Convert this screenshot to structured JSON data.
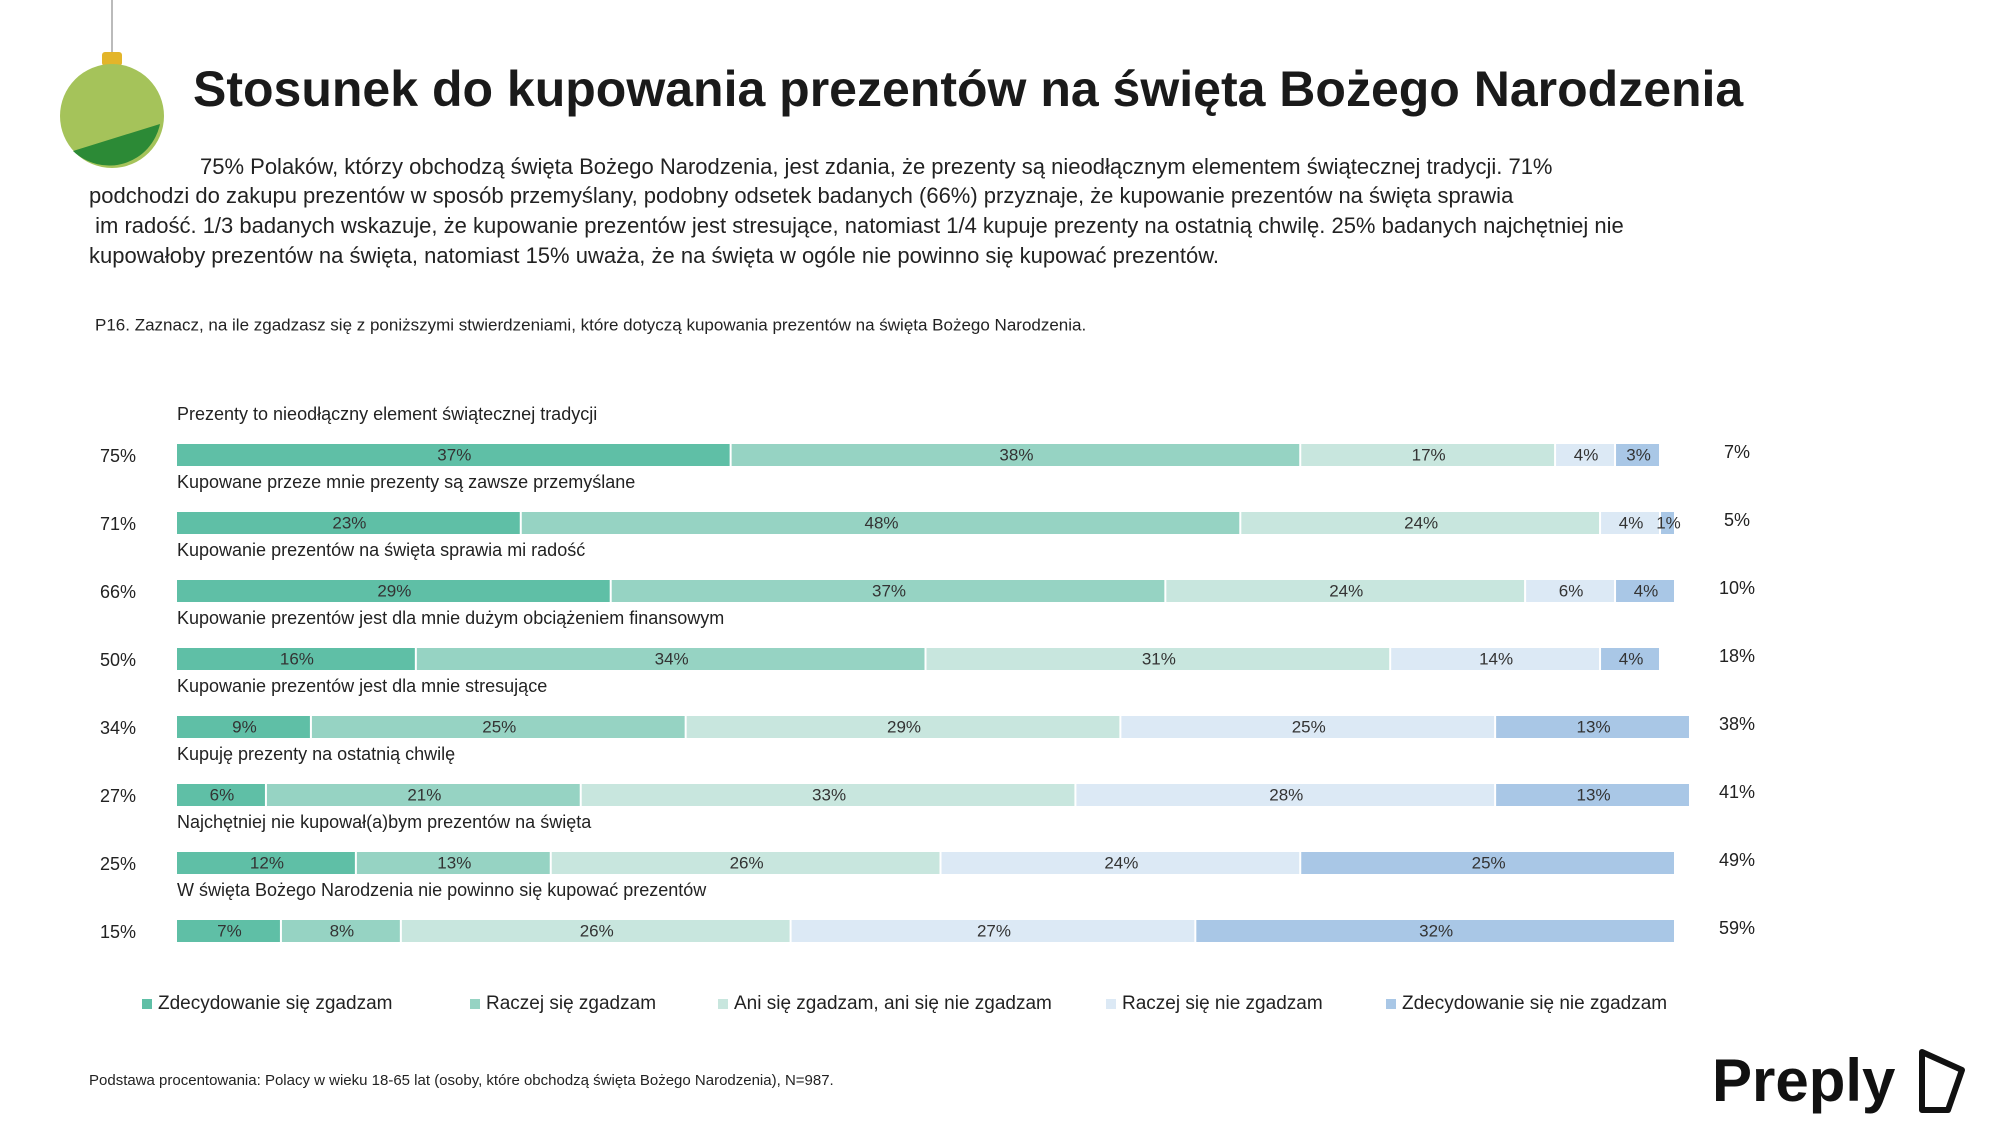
{
  "chart_data": {
    "type": "stacked_bar_horizontal",
    "title": "Stosunek do kupowania prezentów na święta Bożego Narodzenia",
    "description": [
      "75% Polaków, którzy obchodzą  święta Bożego Narodzenia, jest zdania, że prezenty są nieodłącznym elementem świątecznej tradycji. 71%",
      "podchodzi do zakupu prezentów w sposób przemyślany, podobny odsetek badanych (66%) przyznaje, że kupowanie prezentów na święta sprawia",
      " im radość. 1/3 badanych wskazuje, że kupowanie prezentów jest stresujące, natomiast 1/4 kupuje prezenty na ostatnią chwilę. 25% badanych najchętniej nie",
      "kupowałoby prezentów na święta, natomiast 15% uważa, że na święta w ogóle nie powinno się kupować prezentów."
    ],
    "question": "P16. Zaznacz, na ile zgadzasz się z poniższymi stwierdzeniami, które dotyczą kupowania prezentów na święta Bożego Narodzenia.",
    "categories": [
      "Prezenty to nieodłączny element świątecznej tradycji",
      "Kupowane przeze mnie prezenty są zawsze przemyślane",
      "Kupowanie prezentów na święta sprawia mi radość",
      "Kupowanie prezentów jest dla mnie dużym obciążeniem finansowym",
      "Kupowanie prezentów jest dla mnie stresujące",
      "Kupuję prezenty na ostatnią chwilę",
      "Najchętniej nie kupował(a)bym prezentów na święta",
      "W święta Bożego Narodzenia nie powinno się kupować prezentów"
    ],
    "xlim": [
      0,
      100
    ],
    "series": [
      {
        "name": "Zdecydowanie się zgadzam",
        "color": "#5fbfa6",
        "values": [
          37,
          23,
          29,
          16,
          9,
          6,
          12,
          7
        ],
        "value_labels": [
          "37%",
          "23%",
          "29%",
          "16%",
          "9%",
          "6%",
          "12%",
          "7%"
        ]
      },
      {
        "name": "Raczej się zgadzam",
        "color": "#96d3c3",
        "values": [
          38,
          48,
          37,
          34,
          25,
          21,
          13,
          8
        ],
        "value_labels": [
          "38%",
          "48%",
          "37%",
          "34%",
          "25%",
          "21%",
          "13%",
          "8%"
        ]
      },
      {
        "name": "Ani się zgadzam, ani się nie zgadzam",
        "color": "#c8e6de",
        "values": [
          17,
          24,
          24,
          31,
          29,
          33,
          26,
          26
        ],
        "value_labels": [
          "17%",
          "24%",
          "24%",
          "31%",
          "29%",
          "33%",
          "26%",
          "26%"
        ]
      },
      {
        "name": "Raczej się nie zgadzam",
        "color": "#dce9f5",
        "values": [
          4,
          4,
          6,
          14,
          25,
          28,
          24,
          27
        ],
        "value_labels": [
          "4%",
          "4%",
          "6%",
          "14%",
          "25%",
          "28%",
          "24%",
          "27%"
        ]
      },
      {
        "name": "Zdecydowanie się  nie zgadzam",
        "color": "#a9c7e6",
        "values": [
          3,
          1,
          4,
          4,
          13,
          13,
          25,
          32
        ],
        "value_labels": [
          "3%",
          "1%",
          "4%",
          "4%",
          "13%",
          "13%",
          "25%",
          "32%"
        ]
      }
    ],
    "agree_totals": {
      "values": [
        75,
        71,
        66,
        50,
        34,
        27,
        25,
        15
      ],
      "value_labels": [
        "75%",
        "71%",
        "66%",
        "50%",
        "34%",
        "27%",
        "25%",
        "15%"
      ]
    },
    "disagree_totals": {
      "values": [
        7,
        5,
        10,
        18,
        38,
        41,
        49,
        59
      ],
      "value_labels": [
        "7%",
        "5%",
        "10%",
        "18%",
        "38%",
        "41%",
        "49%",
        "59%"
      ]
    },
    "footnote": "Podstawa procentowania: Polacy w wieku 18-65 lat (osoby, które obchodzą święta Bożego Narodzenia), N=987.",
    "logo": "Preply"
  }
}
